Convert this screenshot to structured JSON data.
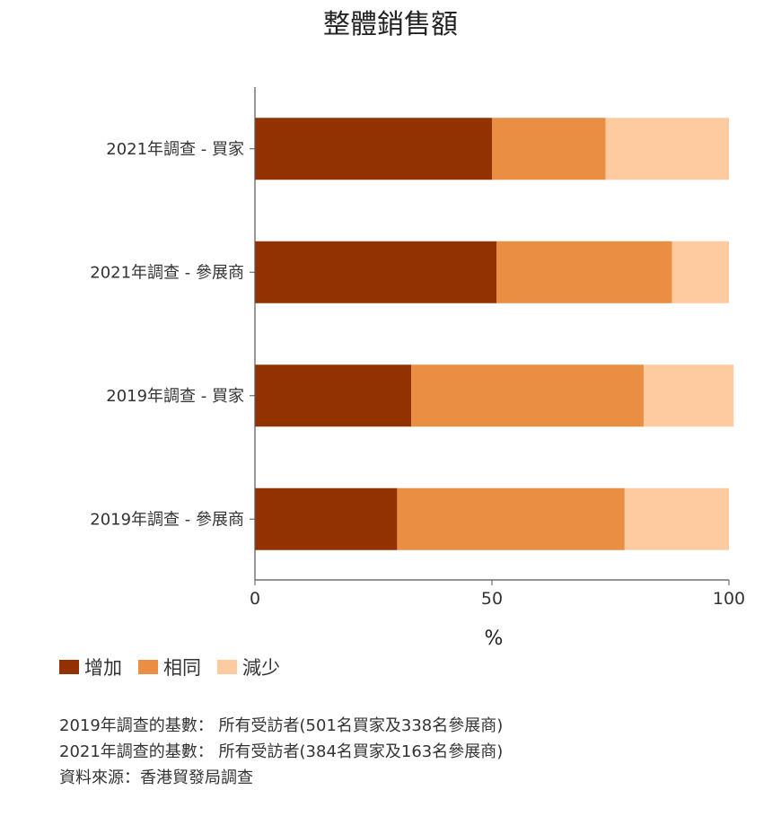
{
  "chart_data": {
    "type": "bar",
    "orientation": "horizontal",
    "stacked": true,
    "title": "整體銷售額",
    "xlabel": "%",
    "ylabel": "",
    "xlim": [
      0,
      100
    ],
    "xticks": [
      0,
      50,
      100
    ],
    "grid": false,
    "legend_position": "bottom-left",
    "categories": [
      "2021年調查 - 買家",
      "2021年調查 - 參展商",
      "2019年調查 - 買家",
      "2019年調查 - 參展商"
    ],
    "series": [
      {
        "name": "增加",
        "color": "#933201",
        "values": [
          50,
          51,
          33,
          30
        ]
      },
      {
        "name": "相同",
        "color": "#E98E43",
        "values": [
          24,
          37,
          49,
          48
        ]
      },
      {
        "name": "減少",
        "color": "#FECBA0",
        "values": [
          26,
          12,
          19,
          22
        ]
      }
    ]
  },
  "notes": [
    "2019年調查的基數： 所有受訪者(501名買家及338名參展商)",
    "2021年調查的基數： 所有受訪者(384名買家及163名參展商)",
    "資料來源：香港貿發局調查"
  ]
}
